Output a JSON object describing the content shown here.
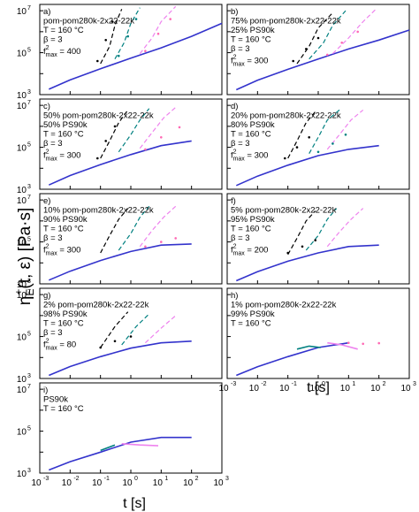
{
  "figure": {
    "ylabel_main": "η",
    "ylabel_rest": "(t, ε) [Pa·s]",
    "ylabel_sup": "+",
    "ylabel_sub": "E",
    "xlabel": "t [s]",
    "xticks": [
      "10",
      "10",
      "10",
      "10",
      "10",
      "10",
      "10"
    ],
    "xtick_exps": [
      "-3",
      "-2",
      "-1",
      "0",
      "1",
      "2",
      "3"
    ],
    "yticks": [
      "10",
      "10",
      "10"
    ],
    "ytick_exps": [
      "3",
      "5",
      "7"
    ]
  },
  "chart_data": [
    {
      "type": "line",
      "panel": "a",
      "labels": [
        "a)",
        "pom-pom280k-2x22-22k",
        "T = 160 °C",
        "β = 3",
        "f",
        "2",
        "max",
        " = 400"
      ],
      "xlim": [
        0.001,
        1000
      ],
      "ylim": [
        1000,
        20000000
      ],
      "log": true,
      "series": [
        {
          "color": "#3333cc",
          "style": "solid",
          "x": [
            0.002,
            0.01,
            0.1,
            1,
            10,
            100,
            1000
          ],
          "y": [
            1800,
            5000,
            17000,
            55000,
            170000,
            600000,
            2500000
          ]
        },
        {
          "color": "#000000",
          "style": "dash",
          "x": [
            0.1,
            0.2,
            0.3,
            0.5
          ],
          "y": [
            30000,
            200000,
            2000000,
            12000000
          ]
        },
        {
          "color": "#008080",
          "style": "dash",
          "x": [
            0.3,
            0.6,
            1,
            2
          ],
          "y": [
            50000,
            300000,
            2500000,
            14000000
          ]
        },
        {
          "color": "#ee82ee",
          "style": "dash",
          "x": [
            2,
            5,
            10,
            30
          ],
          "y": [
            90000,
            500000,
            3000000,
            16000000
          ]
        },
        {
          "color": "#000000",
          "style": "points",
          "x": [
            0.08,
            0.15,
            0.25
          ],
          "y": [
            40000,
            400000,
            3000000
          ]
        },
        {
          "color": "#008080",
          "style": "points",
          "x": [
            0.4,
            0.8,
            1.5
          ],
          "y": [
            70000,
            600000,
            4000000
          ]
        },
        {
          "color": "#ff69b4",
          "style": "points",
          "x": [
            3,
            8,
            20
          ],
          "y": [
            120000,
            800000,
            4000000
          ]
        }
      ]
    },
    {
      "type": "line",
      "panel": "b",
      "labels": [
        "b)",
        "75% pom-pom280k-2x22-22k",
        "25% PS90k",
        "T = 160 °C",
        "β = 3",
        "f",
        "2",
        "max",
        " = 300"
      ],
      "xlim": [
        0.001,
        1000
      ],
      "ylim": [
        1000,
        20000000
      ],
      "log": true,
      "series": [
        {
          "color": "#3333cc",
          "style": "solid",
          "x": [
            0.002,
            0.01,
            0.1,
            1,
            10,
            100,
            1000
          ],
          "y": [
            1700,
            4800,
            16000,
            50000,
            150000,
            400000,
            1200000
          ]
        },
        {
          "color": "#000000",
          "style": "dash",
          "x": [
            0.2,
            0.5,
            1,
            3
          ],
          "y": [
            30000,
            200000,
            1500000,
            8000000
          ]
        },
        {
          "color": "#008080",
          "style": "dash",
          "x": [
            0.5,
            1.5,
            3,
            8
          ],
          "y": [
            50000,
            300000,
            2000000,
            10000000
          ]
        },
        {
          "color": "#ee82ee",
          "style": "dash",
          "x": [
            3,
            10,
            30,
            80
          ],
          "y": [
            90000,
            500000,
            3000000,
            12000000
          ]
        },
        {
          "color": "#000000",
          "style": "points",
          "x": [
            0.15,
            0.4,
            1
          ],
          "y": [
            40000,
            150000,
            500000
          ]
        },
        {
          "color": "#ff69b4",
          "style": "points",
          "x": [
            2,
            6,
            20
          ],
          "y": [
            80000,
            300000,
            1000000
          ]
        }
      ]
    },
    {
      "type": "line",
      "panel": "c",
      "labels": [
        "c)",
        "50% pom-pom280k-2x22-22k",
        "50% PS90k",
        "T = 160 °C",
        "β = 3",
        "f",
        "2",
        "max",
        " = 300"
      ],
      "xlim": [
        0.001,
        1000
      ],
      "ylim": [
        1000,
        20000000
      ],
      "log": true,
      "series": [
        {
          "color": "#3333cc",
          "style": "solid",
          "x": [
            0.002,
            0.01,
            0.1,
            1,
            10,
            100
          ],
          "y": [
            1600,
            4500,
            15000,
            45000,
            120000,
            200000
          ]
        },
        {
          "color": "#000000",
          "style": "dash",
          "x": [
            0.1,
            0.2,
            0.4,
            0.8
          ],
          "y": [
            30000,
            200000,
            1500000,
            6000000
          ]
        },
        {
          "color": "#008080",
          "style": "dash",
          "x": [
            0.4,
            1,
            2,
            4
          ],
          "y": [
            60000,
            400000,
            2000000,
            7000000
          ]
        },
        {
          "color": "#ee82ee",
          "style": "dash",
          "x": [
            2,
            5,
            12,
            30
          ],
          "y": [
            90000,
            500000,
            2500000,
            8000000
          ]
        },
        {
          "color": "#000000",
          "style": "points",
          "x": [
            0.08,
            0.15,
            0.3
          ],
          "y": [
            30000,
            200000,
            1000000
          ]
        },
        {
          "color": "#ff69b4",
          "style": "points",
          "x": [
            3,
            10,
            40
          ],
          "y": [
            80000,
            300000,
            900000
          ]
        }
      ]
    },
    {
      "type": "line",
      "panel": "d",
      "labels": [
        "d)",
        "20% pom-pom280k-2x22-22k",
        "80% PS90k",
        "T = 160 °C",
        "β = 3",
        "f",
        "2",
        "max",
        " = 300"
      ],
      "xlim": [
        0.001,
        1000
      ],
      "ylim": [
        1000,
        20000000
      ],
      "log": true,
      "series": [
        {
          "color": "#3333cc",
          "style": "solid",
          "x": [
            0.002,
            0.01,
            0.1,
            1,
            10,
            100
          ],
          "y": [
            1500,
            4200,
            14000,
            40000,
            80000,
            120000
          ]
        },
        {
          "color": "#000000",
          "style": "dash",
          "x": [
            0.1,
            0.2,
            0.4,
            0.8
          ],
          "y": [
            30000,
            200000,
            1500000,
            5000000
          ]
        },
        {
          "color": "#008080",
          "style": "dash",
          "x": [
            0.5,
            1,
            2,
            5
          ],
          "y": [
            50000,
            300000,
            2000000,
            6000000
          ]
        },
        {
          "color": "#ee82ee",
          "style": "dash",
          "x": [
            2,
            5,
            12,
            30
          ],
          "y": [
            80000,
            400000,
            2000000,
            6000000
          ]
        },
        {
          "color": "#000000",
          "style": "points",
          "x": [
            0.08,
            0.2,
            0.5
          ],
          "y": [
            30000,
            100000,
            300000
          ]
        },
        {
          "color": "#008080",
          "style": "points",
          "x": [
            1,
            3,
            8
          ],
          "y": [
            60000,
            150000,
            400000
          ]
        }
      ]
    },
    {
      "type": "line",
      "panel": "e",
      "labels": [
        "e)",
        "10% pom-pom280k-2x22-22k",
        "90% PS90k",
        "T = 160 °C",
        "β = 3",
        "f",
        "2",
        "max",
        " = 300"
      ],
      "xlim": [
        0.001,
        1000
      ],
      "ylim": [
        1000,
        20000000
      ],
      "log": true,
      "series": [
        {
          "color": "#3333cc",
          "style": "solid",
          "x": [
            0.002,
            0.01,
            0.1,
            1,
            10,
            100
          ],
          "y": [
            1500,
            4000,
            13000,
            35000,
            70000,
            80000
          ]
        },
        {
          "color": "#000000",
          "style": "dash",
          "x": [
            0.1,
            0.2,
            0.4,
            0.8
          ],
          "y": [
            30000,
            200000,
            1200000,
            4000000
          ]
        },
        {
          "color": "#008080",
          "style": "dash",
          "x": [
            0.4,
            1,
            2,
            4
          ],
          "y": [
            40000,
            250000,
            1500000,
            5000000
          ]
        },
        {
          "color": "#ee82ee",
          "style": "dash",
          "x": [
            2,
            5,
            12,
            30
          ],
          "y": [
            60000,
            350000,
            1500000,
            5000000
          ]
        },
        {
          "color": "#ff69b4",
          "style": "points",
          "x": [
            3,
            10,
            30
          ],
          "y": [
            60000,
            100000,
            150000
          ]
        }
      ]
    },
    {
      "type": "line",
      "panel": "f",
      "labels": [
        "f)",
        "5% pom-pom280k-2x22-22k",
        "95% PS90k",
        "T = 160 °C",
        "β = 3",
        "f",
        "2",
        "max",
        " = 200"
      ],
      "xlim": [
        0.001,
        1000
      ],
      "ylim": [
        1000,
        20000000
      ],
      "log": true,
      "series": [
        {
          "color": "#3333cc",
          "style": "solid",
          "x": [
            0.002,
            0.01,
            0.1,
            1,
            10,
            100
          ],
          "y": [
            1400,
            3800,
            12000,
            30000,
            60000,
            70000
          ]
        },
        {
          "color": "#000000",
          "style": "dash",
          "x": [
            0.1,
            0.2,
            0.4,
            0.8
          ],
          "y": [
            25000,
            150000,
            1000000,
            3000000
          ]
        },
        {
          "color": "#008080",
          "style": "dash",
          "x": [
            0.4,
            1,
            2,
            4
          ],
          "y": [
            40000,
            200000,
            1200000,
            4000000
          ]
        },
        {
          "color": "#ee82ee",
          "style": "dash",
          "x": [
            2,
            5,
            12,
            30
          ],
          "y": [
            60000,
            300000,
            1200000,
            4000000
          ]
        },
        {
          "color": "#000000",
          "style": "points",
          "x": [
            0.1,
            0.3,
            0.8
          ],
          "y": [
            30000,
            60000,
            120000
          ]
        }
      ]
    },
    {
      "type": "line",
      "panel": "g",
      "labels": [
        "g)",
        "2% pom-pom280k-2x22-22k",
        "98% PS90k",
        "T = 160 °C",
        "β = 3",
        "f",
        "2",
        "max",
        " = 80"
      ],
      "xlim": [
        0.001,
        1000
      ],
      "ylim": [
        1000,
        20000000
      ],
      "log": true,
      "series": [
        {
          "color": "#3333cc",
          "style": "solid",
          "x": [
            0.002,
            0.01,
            0.1,
            1,
            10,
            100
          ],
          "y": [
            1400,
            3700,
            11000,
            28000,
            50000,
            60000
          ]
        },
        {
          "color": "#000000",
          "style": "dash",
          "x": [
            0.1,
            0.3,
            0.8
          ],
          "y": [
            30000,
            300000,
            1500000
          ]
        },
        {
          "color": "#008080",
          "style": "dash",
          "x": [
            0.5,
            1.5,
            4
          ],
          "y": [
            40000,
            300000,
            1200000
          ]
        },
        {
          "color": "#ee82ee",
          "style": "dash",
          "x": [
            3,
            10,
            30
          ],
          "y": [
            50000,
            250000,
            1000000
          ]
        },
        {
          "color": "#000000",
          "style": "points",
          "x": [
            0.1,
            0.3,
            1
          ],
          "y": [
            30000,
            60000,
            100000
          ]
        }
      ]
    },
    {
      "type": "line",
      "panel": "h",
      "labels": [
        "h)",
        "1% pom-pom280k-2x22-22k",
        "99% PS90k",
        "T = 160 °C"
      ],
      "xlim": [
        0.001,
        1000
      ],
      "ylim": [
        1000,
        20000000
      ],
      "log": true,
      "series": [
        {
          "color": "#3333cc",
          "style": "solid",
          "x": [
            0.002,
            0.01,
            0.1,
            1,
            10
          ],
          "y": [
            1400,
            3600,
            11000,
            30000,
            50000
          ]
        },
        {
          "color": "#008080",
          "style": "solid",
          "x": [
            0.2,
            0.5,
            1.2
          ],
          "y": [
            25000,
            35000,
            30000
          ]
        },
        {
          "color": "#ee82ee",
          "style": "solid",
          "x": [
            2,
            6,
            20
          ],
          "y": [
            50000,
            40000,
            25000
          ]
        },
        {
          "color": "#ff69b4",
          "style": "points",
          "x": [
            10,
            30,
            100
          ],
          "y": [
            50000,
            45000,
            48000
          ]
        }
      ]
    },
    {
      "type": "line",
      "panel": "i",
      "labels": [
        "i)",
        "PS90k",
        "T = 160 °C"
      ],
      "xlim": [
        0.001,
        1000
      ],
      "ylim": [
        1000,
        20000000
      ],
      "log": true,
      "series": [
        {
          "color": "#3333cc",
          "style": "solid",
          "x": [
            0.002,
            0.01,
            0.1,
            1,
            10,
            100
          ],
          "y": [
            1400,
            3500,
            10000,
            30000,
            50000,
            50000
          ]
        },
        {
          "color": "#008080",
          "style": "solid",
          "x": [
            0.1,
            0.3
          ],
          "y": [
            12000,
            22000
          ]
        },
        {
          "color": "#ee82ee",
          "style": "solid",
          "x": [
            0.5,
            2,
            8
          ],
          "y": [
            25000,
            22000,
            20000
          ]
        }
      ]
    }
  ]
}
